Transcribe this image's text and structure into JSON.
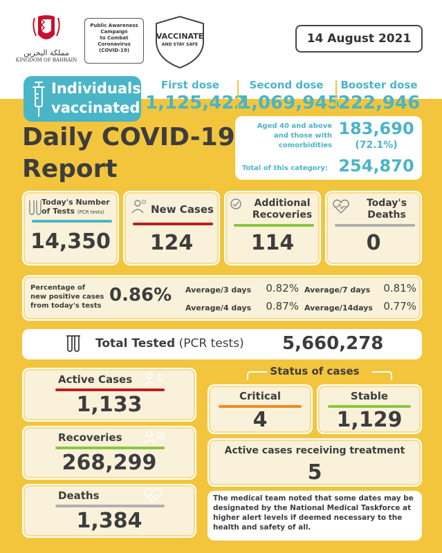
{
  "header": {
    "kingdom_ar": "مملكة البحرين",
    "kingdom_en": "KINGDOM OF BAHRAIN",
    "campaign": [
      "Public Awareness",
      "Campaign",
      "to Combat",
      "Coronavirus",
      "(COVID-19)"
    ],
    "badge_line1": "VACCINATE",
    "badge_line2": "AND STAY SAFE",
    "date": "14 August 2021"
  },
  "vaccination": {
    "label_line1": "Individuals",
    "label_line2": "vaccinated",
    "first_label": "First dose",
    "first_value": "1,125,422",
    "second_label": "Second dose",
    "second_value": "1,069,945",
    "booster_label": "Booster dose",
    "booster_value": "222,946",
    "aged_line1": "Aged 40 and above",
    "aged_line2": "and those with",
    "aged_line3": "comorbidities",
    "aged_value": "183,690",
    "aged_pct": "(72.1%)",
    "total_label": "Total of this category:",
    "total_value": "254,870"
  },
  "title": {
    "line1": "Daily COVID-19",
    "line2": "Report"
  },
  "stats": {
    "tests_label_line1": "Today's Number",
    "tests_label_line2": "of Tests",
    "tests_label_small": "(PCR tests)",
    "tests_value": "14,350",
    "new_cases_label": "New Cases",
    "new_cases_value": "124",
    "recoveries_label_line1": "Additional",
    "recoveries_label_line2": "Recoveries",
    "recoveries_value": "114",
    "deaths_label_line1": "Today's",
    "deaths_label_line2": "Deaths",
    "deaths_value": "0"
  },
  "percentage": {
    "label_line1": "Percentage of",
    "label_line2": "new positive cases",
    "label_line3": "from today's tests",
    "value": "0.86%",
    "avg3_label": "Average/3 days",
    "avg3_value": "0.82%",
    "avg7_label": "Average/7 days",
    "avg7_value": "0.81%",
    "avg4_label": "Average/4 days",
    "avg4_value": "0.87%",
    "avg14_label": "Average/14days",
    "avg14_value": "0.77%"
  },
  "total_tested": {
    "label": "Total Tested",
    "label_small": "(PCR tests)",
    "value": "5,660,278"
  },
  "totals": {
    "active_label": "Active Cases",
    "active_value": "1,133",
    "recoveries_label": "Recoveries",
    "recoveries_value": "268,299",
    "deaths_label": "Deaths",
    "deaths_value": "1,384"
  },
  "status": {
    "heading": "Status of cases",
    "critical_label": "Critical",
    "critical_value": "4",
    "stable_label": "Stable",
    "stable_value": "1,129",
    "treatment_label": "Active cases receiving treatment",
    "treatment_value": "5"
  },
  "note": "The medical team noted that some dates may be designated by the National Medical Taskforce at higher alert levels if deemed necessary to the health and safety of all.",
  "colors": {
    "yellow": "#f2c53d",
    "teal": "#4ab5c7",
    "red": "#b8201f",
    "orange": "#f08a24",
    "green": "#8cc63f",
    "grey": "#b0b0b0"
  }
}
